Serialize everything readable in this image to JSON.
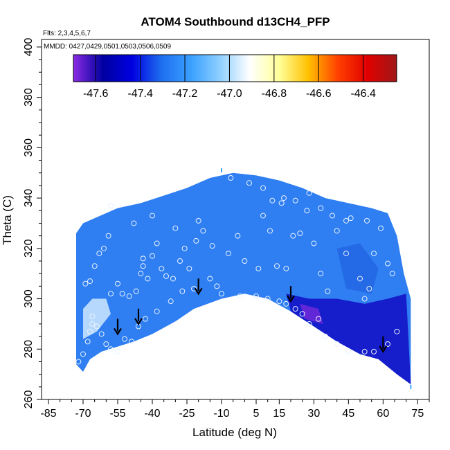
{
  "chart_data": {
    "type": "heatmap",
    "title": "ATOM4 Southbound d13CH4_PFP",
    "subtitle_flights": "Flts: 2,3,4,5,6,7",
    "subtitle_dates": "MMDD: 0427,0429,0501,0503,0506,0509",
    "xlabel": "Latitude (deg N)",
    "ylabel": "Theta (C)",
    "xlim": [
      -88,
      80
    ],
    "ylim": [
      260,
      403
    ],
    "xticks": [
      -85,
      -70,
      -55,
      -40,
      -25,
      -10,
      5,
      15,
      30,
      45,
      60,
      75
    ],
    "yticks": [
      260,
      280,
      300,
      320,
      340,
      360,
      380,
      400
    ],
    "colorbar": {
      "range": [
        -47.7,
        -46.25
      ],
      "ticks": [
        -47.6,
        -47.4,
        -47.2,
        -47.0,
        -46.8,
        -46.6,
        -46.4
      ],
      "colors": [
        "#8a2be2",
        "#0000a0",
        "#0000e0",
        "#1e6ff0",
        "#3aa0ff",
        "#8fd0ff",
        "#ffffff",
        "#ffff99",
        "#ffc000",
        "#ff4000",
        "#e00000",
        "#a01818"
      ]
    },
    "field_color": "#2f7ff2",
    "dark_region_color": "#1414c8",
    "light_region_color": "#cfe8ff",
    "coverage_upper": [
      [
        -73,
        326
      ],
      [
        -70,
        330
      ],
      [
        -60,
        334
      ],
      [
        -55,
        336
      ],
      [
        -45,
        338
      ],
      [
        -35,
        341
      ],
      [
        -25,
        344
      ],
      [
        -15,
        348
      ],
      [
        -5,
        350
      ],
      [
        5,
        349
      ],
      [
        15,
        347
      ],
      [
        25,
        344
      ],
      [
        35,
        340
      ],
      [
        45,
        338
      ],
      [
        55,
        336
      ],
      [
        62,
        334
      ],
      [
        66,
        325
      ],
      [
        69,
        310
      ],
      [
        72,
        300
      ]
    ],
    "coverage_lower": [
      [
        -73,
        274
      ],
      [
        -70,
        271
      ],
      [
        -67,
        276
      ],
      [
        -62,
        279
      ],
      [
        -55,
        281
      ],
      [
        -48,
        283
      ],
      [
        -40,
        286
      ],
      [
        -30,
        291
      ],
      [
        -22,
        296
      ],
      [
        -10,
        300
      ],
      [
        0,
        302
      ],
      [
        10,
        300
      ],
      [
        20,
        295
      ],
      [
        30,
        289
      ],
      [
        40,
        283
      ],
      [
        50,
        278
      ],
      [
        58,
        276
      ],
      [
        66,
        270
      ],
      [
        72,
        266
      ]
    ],
    "arrow_latitudes": [
      -55,
      -46,
      -20,
      20,
      60
    ],
    "arrow_y": [
      286,
      290,
      302,
      299,
      279
    ],
    "samples": [
      [
        -72,
        275
      ],
      [
        -70,
        278
      ],
      [
        -68,
        283
      ],
      [
        -67,
        287
      ],
      [
        -66,
        293
      ],
      [
        -66,
        290
      ],
      [
        -64,
        289
      ],
      [
        -62,
        286
      ],
      [
        -60,
        282
      ],
      [
        -58,
        280
      ],
      [
        -55,
        279
      ],
      [
        -52,
        284
      ],
      [
        -49,
        283
      ],
      [
        -46,
        289
      ],
      [
        -43,
        292
      ],
      [
        -38,
        295
      ],
      [
        -32,
        299
      ],
      [
        -27,
        303
      ],
      [
        -22,
        304
      ],
      [
        -15,
        308
      ],
      [
        -10,
        302
      ],
      [
        -2,
        301
      ],
      [
        5,
        301
      ],
      [
        10,
        300
      ],
      [
        15,
        299
      ],
      [
        18,
        298
      ],
      [
        22,
        296
      ],
      [
        25,
        294
      ],
      [
        28,
        290
      ],
      [
        32,
        292
      ],
      [
        35,
        285
      ],
      [
        40,
        282
      ],
      [
        45,
        279
      ],
      [
        52,
        279
      ],
      [
        56,
        279
      ],
      [
        62,
        282
      ],
      [
        66,
        287
      ],
      [
        -69,
        306
      ],
      [
        -67,
        307
      ],
      [
        -65,
        313
      ],
      [
        -63,
        318
      ],
      [
        -61,
        320
      ],
      [
        -59,
        325
      ],
      [
        -58,
        302
      ],
      [
        -55,
        306
      ],
      [
        -53,
        302
      ],
      [
        -50,
        301
      ],
      [
        -47,
        303
      ],
      [
        -45,
        310
      ],
      [
        -44,
        316
      ],
      [
        -44,
        313
      ],
      [
        -42,
        308
      ],
      [
        -40,
        317
      ],
      [
        -38,
        322
      ],
      [
        -36,
        312
      ],
      [
        -34,
        309
      ],
      [
        -31,
        308
      ],
      [
        -28,
        315
      ],
      [
        -26,
        320
      ],
      [
        -24,
        312
      ],
      [
        -21,
        323
      ],
      [
        -18,
        327
      ],
      [
        -14,
        321
      ],
      [
        -12,
        305
      ],
      [
        -7,
        318
      ],
      [
        -3,
        325
      ],
      [
        0,
        315
      ],
      [
        6,
        312
      ],
      [
        8,
        333
      ],
      [
        11,
        327
      ],
      [
        14,
        313
      ],
      [
        18,
        312
      ],
      [
        21,
        325
      ],
      [
        24,
        326
      ],
      [
        27,
        335
      ],
      [
        30,
        322
      ],
      [
        33,
        310
      ],
      [
        36,
        303
      ],
      [
        40,
        327
      ],
      [
        44,
        318
      ],
      [
        46,
        332
      ],
      [
        50,
        308
      ],
      [
        52,
        300
      ],
      [
        54,
        304
      ],
      [
        56,
        318
      ],
      [
        59,
        328
      ],
      [
        62,
        314
      ],
      [
        64,
        310
      ],
      [
        -58,
        337
      ],
      [
        -48,
        330
      ],
      [
        -40,
        333
      ],
      [
        -30,
        328
      ],
      [
        -20,
        331
      ],
      [
        -6,
        348
      ],
      [
        2,
        346
      ],
      [
        8,
        344
      ],
      [
        12,
        339
      ],
      [
        16,
        338
      ],
      [
        17,
        340
      ],
      [
        22,
        339
      ],
      [
        28,
        342
      ],
      [
        33,
        336
      ],
      [
        38,
        333
      ],
      [
        44,
        331
      ],
      [
        53,
        331
      ]
    ],
    "endpoint_marks": [
      [
        -10,
        351
      ],
      [
        72,
        265
      ]
    ]
  }
}
